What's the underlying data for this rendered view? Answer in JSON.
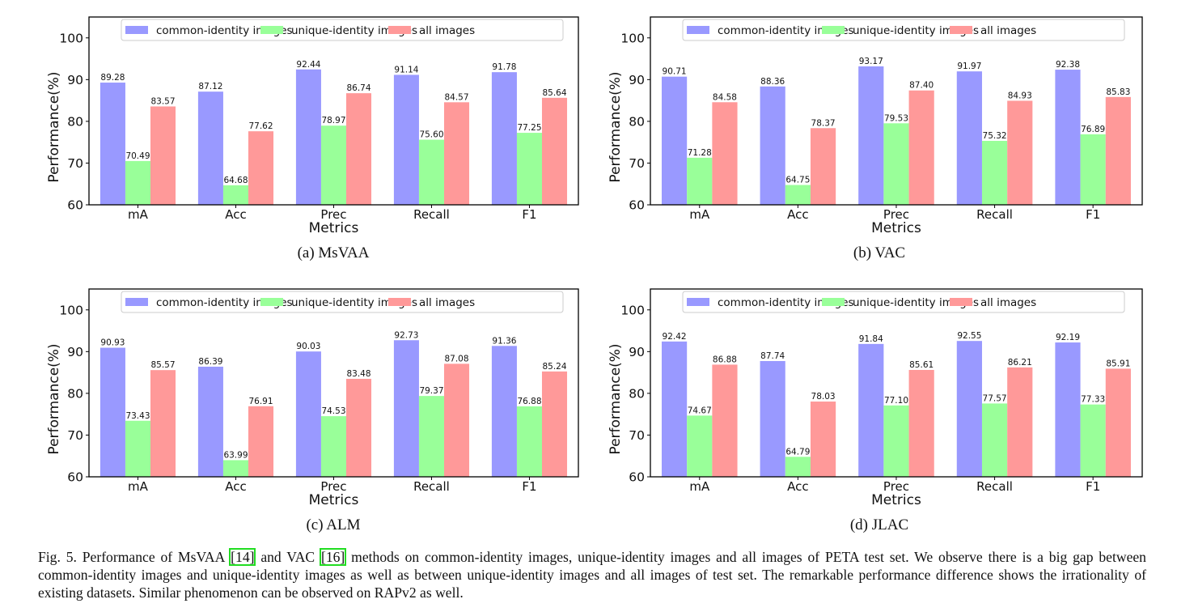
{
  "colors": {
    "common": "#9999ff",
    "unique": "#99ff99",
    "all": "#ff9999"
  },
  "legend": [
    "common-identity images",
    "unique-identity images",
    "all images"
  ],
  "chart_data": [
    {
      "type": "bar",
      "caption": "(a) MsVAA",
      "categories": [
        "mA",
        "Acc",
        "Prec",
        "Recall",
        "F1"
      ],
      "series": [
        {
          "name": "common-identity images",
          "values": [
            89.28,
            87.12,
            92.44,
            91.14,
            91.78
          ]
        },
        {
          "name": "unique-identity images",
          "values": [
            70.49,
            64.68,
            78.97,
            75.6,
            77.25
          ]
        },
        {
          "name": "all images",
          "values": [
            83.57,
            77.62,
            86.74,
            84.57,
            85.64
          ]
        }
      ],
      "xlabel": "Metrics",
      "ylabel": "Performance(%)",
      "ylim": [
        60,
        105
      ],
      "yticks": [
        60,
        70,
        80,
        90,
        100
      ],
      "legend_position": "top",
      "grid": false
    },
    {
      "type": "bar",
      "caption": "(b) VAC",
      "categories": [
        "mA",
        "Acc",
        "Prec",
        "Recall",
        "F1"
      ],
      "series": [
        {
          "name": "common-identity images",
          "values": [
            90.71,
            88.36,
            93.17,
            91.97,
            92.38
          ]
        },
        {
          "name": "unique-identity images",
          "values": [
            71.28,
            64.75,
            79.53,
            75.32,
            76.89
          ]
        },
        {
          "name": "all images",
          "values": [
            84.58,
            78.37,
            87.4,
            84.93,
            85.83
          ]
        }
      ],
      "xlabel": "Metrics",
      "ylabel": "Performance(%)",
      "ylim": [
        60,
        105
      ],
      "yticks": [
        60,
        70,
        80,
        90,
        100
      ],
      "legend_position": "top",
      "grid": false
    },
    {
      "type": "bar",
      "caption": "(c) ALM",
      "categories": [
        "mA",
        "Acc",
        "Prec",
        "Recall",
        "F1"
      ],
      "series": [
        {
          "name": "common-identity images",
          "values": [
            90.93,
            86.39,
            90.03,
            92.73,
            91.36
          ]
        },
        {
          "name": "unique-identity images",
          "values": [
            73.43,
            63.99,
            74.53,
            79.37,
            76.88
          ]
        },
        {
          "name": "all images",
          "values": [
            85.57,
            76.91,
            83.48,
            87.08,
            85.24
          ]
        }
      ],
      "xlabel": "Metrics",
      "ylabel": "Performance(%)",
      "ylim": [
        60,
        105
      ],
      "yticks": [
        60,
        70,
        80,
        90,
        100
      ],
      "legend_position": "top",
      "grid": false
    },
    {
      "type": "bar",
      "caption": "(d) JLAC",
      "categories": [
        "mA",
        "Acc",
        "Prec",
        "Recall",
        "F1"
      ],
      "series": [
        {
          "name": "common-identity images",
          "values": [
            92.42,
            87.74,
            91.84,
            92.55,
            92.19
          ]
        },
        {
          "name": "unique-identity images",
          "values": [
            74.67,
            64.79,
            77.1,
            77.57,
            77.33
          ]
        },
        {
          "name": "all images",
          "values": [
            86.88,
            78.03,
            85.61,
            86.21,
            85.91
          ]
        }
      ],
      "xlabel": "Metrics",
      "ylabel": "Performance(%)",
      "ylim": [
        60,
        105
      ],
      "yticks": [
        60,
        70,
        80,
        90,
        100
      ],
      "legend_position": "top",
      "grid": false
    }
  ],
  "caption": {
    "prefix": "Fig. 5.  Performance of MsVAA ",
    "ref1": "[14]",
    "mid": " and VAC ",
    "ref2": "[16]",
    "rest": " methods on common-identity images, unique-identity images and all images of PETA test set. We observe there is a big gap between common-identity images and unique-identity images as well as between unique-identity images and all images of test set. The remarkable performance difference shows the irrationality of existing datasets. Similar phenomenon can be observed on RAPv2 as well."
  }
}
